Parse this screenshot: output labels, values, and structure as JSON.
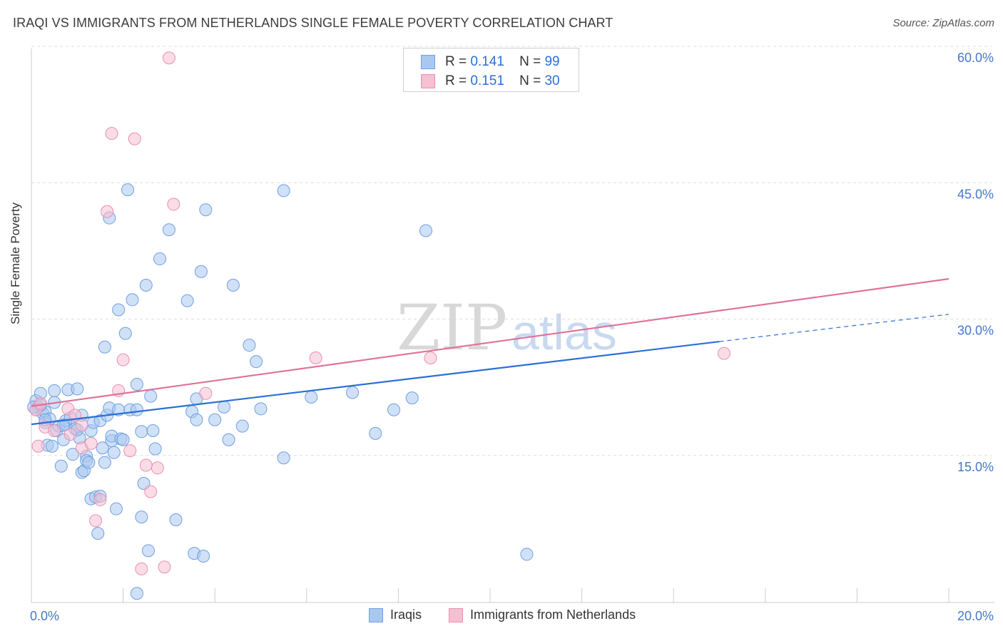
{
  "title": "IRAQI VS IMMIGRANTS FROM NETHERLANDS SINGLE FEMALE POVERTY CORRELATION CHART",
  "source": "Source: ZipAtlas.com",
  "watermark": {
    "zip": "ZIP",
    "atlas": "atlas"
  },
  "legend_stats": [
    {
      "r_label": "R =",
      "r_value": "0.141",
      "n_label": "N =",
      "n_value": "99"
    },
    {
      "r_label": "R =",
      "r_value": "0.151",
      "n_label": "N =",
      "n_value": "30"
    }
  ],
  "colors": {
    "blue_fill": "#a9c8f0",
    "blue_stroke": "#6f9fe0",
    "blue_line": "#2c6fd6",
    "pink_fill": "#f6bfd2",
    "pink_stroke": "#ea8fb0",
    "pink_line": "#e0709a",
    "tick_text": "#4477cc",
    "grid": "#dddddd"
  },
  "chart_data": {
    "type": "scatter",
    "ylabel": "Single Female Poverty",
    "xlim": [
      0,
      20
    ],
    "ylim": [
      0,
      60
    ],
    "x_tick_labels": [
      "0.0%",
      "20.0%"
    ],
    "y_ticks": [
      15,
      30,
      45,
      60
    ],
    "y_tick_labels": [
      "15.0%",
      "30.0%",
      "45.0%",
      "60.0%"
    ],
    "legend": "bottom-center",
    "grid": "horizontal-dashed",
    "series": [
      {
        "name": "Iraqis",
        "color": "#a9c8f0",
        "trend": {
          "x0": 0,
          "y0": 19.6,
          "x1": 15,
          "y1": 28.7,
          "dash_to_x": 20,
          "dash_to_y": 31.7
        },
        "points": [
          [
            0.1,
            21.2
          ],
          [
            0.1,
            22.2
          ],
          [
            0.2,
            23.0
          ],
          [
            0.15,
            21.5
          ],
          [
            0.25,
            20.8
          ],
          [
            0.3,
            21.0
          ],
          [
            0.3,
            19.8
          ],
          [
            0.35,
            17.3
          ],
          [
            0.4,
            20.2
          ],
          [
            0.45,
            17.2
          ],
          [
            0.5,
            23.3
          ],
          [
            0.5,
            22.0
          ],
          [
            0.55,
            18.9
          ],
          [
            0.6,
            19.4
          ],
          [
            0.65,
            15.0
          ],
          [
            0.7,
            17.9
          ],
          [
            0.75,
            19.6
          ],
          [
            0.75,
            20.0
          ],
          [
            0.8,
            23.4
          ],
          [
            0.85,
            20.3
          ],
          [
            0.9,
            16.3
          ],
          [
            0.95,
            19.1
          ],
          [
            1.0,
            23.5
          ],
          [
            1.05,
            18.1
          ],
          [
            1.1,
            14.3
          ],
          [
            1.1,
            20.6
          ],
          [
            1.15,
            14.5
          ],
          [
            1.2,
            16.1
          ],
          [
            1.2,
            15.6
          ],
          [
            1.25,
            15.4
          ],
          [
            1.3,
            11.4
          ],
          [
            1.3,
            18.9
          ],
          [
            1.35,
            19.8
          ],
          [
            1.4,
            11.6
          ],
          [
            1.45,
            7.6
          ],
          [
            1.5,
            11.7
          ],
          [
            1.5,
            20.0
          ],
          [
            1.55,
            17.0
          ],
          [
            1.6,
            15.4
          ],
          [
            1.6,
            28.1
          ],
          [
            1.65,
            20.6
          ],
          [
            1.7,
            21.4
          ],
          [
            1.75,
            17.8
          ],
          [
            1.75,
            18.3
          ],
          [
            1.8,
            16.5
          ],
          [
            1.85,
            10.3
          ],
          [
            1.9,
            21.2
          ],
          [
            1.9,
            32.2
          ],
          [
            1.95,
            18.0
          ],
          [
            2.0,
            17.9
          ],
          [
            2.05,
            29.6
          ],
          [
            2.1,
            45.4
          ],
          [
            2.15,
            21.2
          ],
          [
            2.2,
            33.3
          ],
          [
            2.3,
            24.0
          ],
          [
            2.3,
            21.2
          ],
          [
            2.4,
            9.4
          ],
          [
            2.4,
            18.8
          ],
          [
            2.45,
            13.1
          ],
          [
            2.5,
            34.9
          ],
          [
            2.55,
            5.7
          ],
          [
            2.6,
            22.7
          ],
          [
            2.65,
            18.9
          ],
          [
            2.7,
            16.9
          ],
          [
            2.8,
            37.8
          ],
          [
            3.0,
            41.0
          ],
          [
            3.15,
            9.1
          ],
          [
            3.4,
            33.2
          ],
          [
            3.5,
            21.0
          ],
          [
            3.55,
            5.4
          ],
          [
            3.6,
            20.1
          ],
          [
            3.6,
            22.4
          ],
          [
            3.7,
            36.4
          ],
          [
            3.75,
            5.1
          ],
          [
            3.8,
            43.2
          ],
          [
            4.0,
            20.1
          ],
          [
            4.2,
            21.5
          ],
          [
            4.3,
            17.9
          ],
          [
            4.4,
            34.9
          ],
          [
            4.6,
            19.4
          ],
          [
            4.75,
            28.3
          ],
          [
            4.9,
            26.5
          ],
          [
            5.0,
            21.3
          ],
          [
            5.5,
            15.9
          ],
          [
            5.5,
            45.3
          ],
          [
            6.1,
            22.6
          ],
          [
            7.0,
            23.1
          ],
          [
            7.5,
            18.6
          ],
          [
            7.9,
            21.2
          ],
          [
            8.3,
            22.5
          ],
          [
            8.6,
            40.9
          ],
          [
            10.8,
            5.3
          ],
          [
            2.3,
            1.0
          ],
          [
            1.7,
            42.3
          ],
          [
            0.05,
            21.5
          ],
          [
            0.2,
            21.7
          ],
          [
            0.3,
            20.1
          ],
          [
            0.7,
            19.5
          ],
          [
            1.0,
            19.0
          ]
        ]
      },
      {
        "name": "Immigrants from Netherlands",
        "color": "#f6bfd2",
        "trend": {
          "x0": 0,
          "y0": 21.6,
          "x1": 20,
          "y1": 35.6
        },
        "points": [
          [
            0.1,
            21.2
          ],
          [
            0.15,
            17.2
          ],
          [
            0.2,
            21.9
          ],
          [
            0.3,
            19.3
          ],
          [
            0.5,
            18.9
          ],
          [
            0.8,
            21.3
          ],
          [
            0.85,
            18.5
          ],
          [
            0.95,
            20.6
          ],
          [
            1.1,
            17.0
          ],
          [
            1.1,
            19.5
          ],
          [
            1.3,
            17.5
          ],
          [
            1.4,
            9.0
          ],
          [
            1.5,
            11.3
          ],
          [
            1.65,
            43.0
          ],
          [
            1.75,
            51.6
          ],
          [
            1.9,
            23.3
          ],
          [
            2.0,
            26.7
          ],
          [
            2.15,
            16.7
          ],
          [
            2.25,
            51.0
          ],
          [
            2.4,
            3.7
          ],
          [
            2.5,
            15.1
          ],
          [
            2.6,
            12.2
          ],
          [
            2.75,
            14.8
          ],
          [
            2.9,
            3.9
          ],
          [
            3.0,
            59.9
          ],
          [
            3.1,
            43.8
          ],
          [
            3.8,
            23.0
          ],
          [
            6.2,
            26.9
          ],
          [
            8.7,
            26.9
          ],
          [
            15.1,
            27.4
          ]
        ]
      }
    ]
  }
}
